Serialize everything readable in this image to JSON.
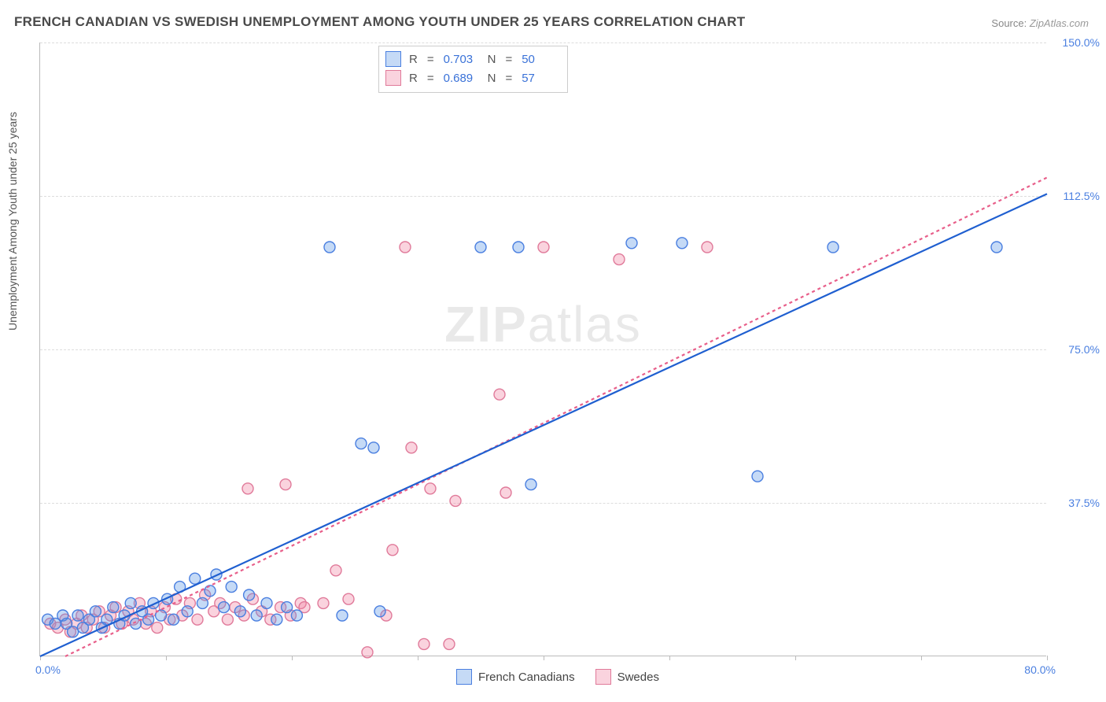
{
  "title": "FRENCH CANADIAN VS SWEDISH UNEMPLOYMENT AMONG YOUTH UNDER 25 YEARS CORRELATION CHART",
  "source_label": "Source:",
  "source_value": "ZipAtlas.com",
  "y_axis_label": "Unemployment Among Youth under 25 years",
  "watermark_a": "ZIP",
  "watermark_b": "atlas",
  "chart": {
    "type": "scatter",
    "background_color": "#ffffff",
    "grid_color": "#dddddd",
    "axis_color": "#bbbbbb",
    "tick_label_color": "#4a7fe0",
    "xlim": [
      0,
      80
    ],
    "ylim": [
      0,
      150
    ],
    "y_ticks": [
      37.5,
      75.0,
      112.5,
      150.0
    ],
    "y_tick_labels": [
      "37.5%",
      "75.0%",
      "112.5%",
      "150.0%"
    ],
    "x_tick_positions": [
      0,
      10,
      20,
      30,
      40,
      50,
      60,
      70,
      80
    ],
    "x_min_label": "0.0%",
    "x_max_label": "80.0%",
    "marker_radius": 7,
    "marker_stroke_width": 1.4,
    "trendline_width": 2.2,
    "series": {
      "fc": {
        "label": "French Canadians",
        "fill": "rgba(90,150,230,0.35)",
        "stroke": "#4a7fe0",
        "line_color": "#1f5fd0",
        "line_dash": "none",
        "r_value": "0.703",
        "n_value": "50",
        "trend": {
          "x1": 0,
          "y1": 0,
          "x2": 80,
          "y2": 113
        },
        "points": [
          [
            0.6,
            9
          ],
          [
            1.2,
            8
          ],
          [
            1.8,
            10
          ],
          [
            2.1,
            8
          ],
          [
            2.6,
            6
          ],
          [
            3.0,
            10
          ],
          [
            3.4,
            7
          ],
          [
            3.9,
            9
          ],
          [
            4.4,
            11
          ],
          [
            4.9,
            7
          ],
          [
            5.3,
            9
          ],
          [
            5.8,
            12
          ],
          [
            6.3,
            8
          ],
          [
            6.7,
            10
          ],
          [
            7.2,
            13
          ],
          [
            7.6,
            8
          ],
          [
            8.1,
            11
          ],
          [
            8.6,
            9
          ],
          [
            9.0,
            13
          ],
          [
            9.6,
            10
          ],
          [
            10.1,
            14
          ],
          [
            10.6,
            9
          ],
          [
            11.1,
            17
          ],
          [
            11.7,
            11
          ],
          [
            12.3,
            19
          ],
          [
            12.9,
            13
          ],
          [
            13.5,
            16
          ],
          [
            14.0,
            20
          ],
          [
            14.6,
            12
          ],
          [
            15.2,
            17
          ],
          [
            15.9,
            11
          ],
          [
            16.6,
            15
          ],
          [
            17.2,
            10
          ],
          [
            18.0,
            13
          ],
          [
            18.8,
            9
          ],
          [
            19.6,
            12
          ],
          [
            20.4,
            10
          ],
          [
            24.0,
            10
          ],
          [
            25.5,
            52
          ],
          [
            26.5,
            51
          ],
          [
            27.0,
            11
          ],
          [
            23.0,
            100
          ],
          [
            35.0,
            100
          ],
          [
            38.0,
            100
          ],
          [
            39.0,
            42
          ],
          [
            47.0,
            101
          ],
          [
            51.0,
            101
          ],
          [
            57.0,
            44
          ],
          [
            63.0,
            100
          ],
          [
            76.0,
            100
          ]
        ]
      },
      "sw": {
        "label": "Swedes",
        "fill": "rgba(240,130,160,0.35)",
        "stroke": "#e07a9a",
        "line_color": "#e85f8a",
        "line_dash": "4,4",
        "r_value": "0.689",
        "n_value": "57",
        "trend": {
          "x1": 2,
          "y1": 0,
          "x2": 80,
          "y2": 117
        },
        "points": [
          [
            0.8,
            8
          ],
          [
            1.4,
            7
          ],
          [
            2.0,
            9
          ],
          [
            2.4,
            6
          ],
          [
            2.9,
            8
          ],
          [
            3.3,
            10
          ],
          [
            3.7,
            7
          ],
          [
            4.2,
            9
          ],
          [
            4.7,
            11
          ],
          [
            5.1,
            7
          ],
          [
            5.6,
            10
          ],
          [
            6.0,
            12
          ],
          [
            6.5,
            8
          ],
          [
            7.0,
            11
          ],
          [
            7.4,
            9
          ],
          [
            7.9,
            13
          ],
          [
            8.4,
            8
          ],
          [
            8.8,
            11
          ],
          [
            9.3,
            7
          ],
          [
            9.9,
            12
          ],
          [
            10.3,
            9
          ],
          [
            10.8,
            14
          ],
          [
            11.3,
            10
          ],
          [
            11.9,
            13
          ],
          [
            12.5,
            9
          ],
          [
            13.1,
            15
          ],
          [
            13.8,
            11
          ],
          [
            14.3,
            13
          ],
          [
            14.9,
            9
          ],
          [
            15.5,
            12
          ],
          [
            16.2,
            10
          ],
          [
            16.9,
            14
          ],
          [
            17.6,
            11
          ],
          [
            18.3,
            9
          ],
          [
            19.1,
            12
          ],
          [
            19.9,
            10
          ],
          [
            20.7,
            13
          ],
          [
            16.5,
            41
          ],
          [
            19.5,
            42
          ],
          [
            21.0,
            12
          ],
          [
            22.5,
            13
          ],
          [
            23.5,
            21
          ],
          [
            24.5,
            14
          ],
          [
            26.0,
            1
          ],
          [
            27.5,
            10
          ],
          [
            28.0,
            26
          ],
          [
            29.5,
            51
          ],
          [
            30.5,
            3
          ],
          [
            31.0,
            41
          ],
          [
            32.5,
            3
          ],
          [
            33.0,
            38
          ],
          [
            29.0,
            100
          ],
          [
            36.5,
            64
          ],
          [
            37.0,
            40
          ],
          [
            40.0,
            100
          ],
          [
            46.0,
            97
          ],
          [
            53.0,
            100
          ]
        ]
      }
    },
    "legend_labels": {
      "R": "R",
      "N": "N",
      "eq": "="
    }
  }
}
